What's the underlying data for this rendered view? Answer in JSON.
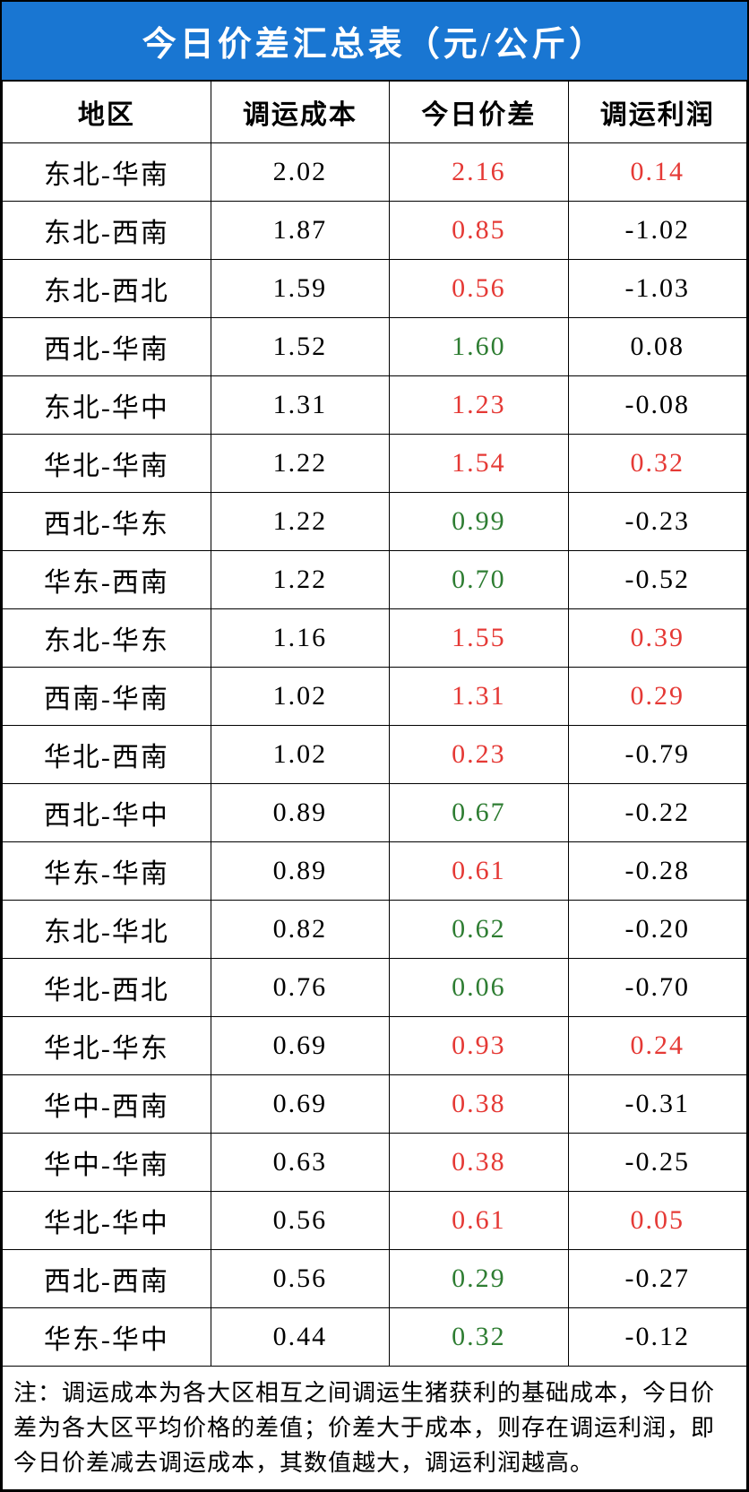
{
  "title": "今日价差汇总表（元/公斤）",
  "columns": [
    "地区",
    "调运成本",
    "今日价差",
    "调运利润"
  ],
  "colors": {
    "red": "#e53935",
    "green": "#2e7d32",
    "black": "#000000",
    "header_bg": "#1976d2",
    "header_fg": "#ffffff"
  },
  "rows": [
    {
      "region": "东北-华南",
      "cost": "2.02",
      "diff": "2.16",
      "diff_color": "red",
      "profit": "0.14",
      "profit_color": "red"
    },
    {
      "region": "东北-西南",
      "cost": "1.87",
      "diff": "0.85",
      "diff_color": "red",
      "profit": "-1.02",
      "profit_color": "black"
    },
    {
      "region": "东北-西北",
      "cost": "1.59",
      "diff": "0.56",
      "diff_color": "red",
      "profit": "-1.03",
      "profit_color": "black"
    },
    {
      "region": "西北-华南",
      "cost": "1.52",
      "diff": "1.60",
      "diff_color": "green",
      "profit": "0.08",
      "profit_color": "black"
    },
    {
      "region": "东北-华中",
      "cost": "1.31",
      "diff": "1.23",
      "diff_color": "red",
      "profit": "-0.08",
      "profit_color": "black"
    },
    {
      "region": "华北-华南",
      "cost": "1.22",
      "diff": "1.54",
      "diff_color": "red",
      "profit": "0.32",
      "profit_color": "red"
    },
    {
      "region": "西北-华东",
      "cost": "1.22",
      "diff": "0.99",
      "diff_color": "green",
      "profit": "-0.23",
      "profit_color": "black"
    },
    {
      "region": "华东-西南",
      "cost": "1.22",
      "diff": "0.70",
      "diff_color": "green",
      "profit": "-0.52",
      "profit_color": "black"
    },
    {
      "region": "东北-华东",
      "cost": "1.16",
      "diff": "1.55",
      "diff_color": "red",
      "profit": "0.39",
      "profit_color": "red"
    },
    {
      "region": "西南-华南",
      "cost": "1.02",
      "diff": "1.31",
      "diff_color": "red",
      "profit": "0.29",
      "profit_color": "red"
    },
    {
      "region": "华北-西南",
      "cost": "1.02",
      "diff": "0.23",
      "diff_color": "red",
      "profit": "-0.79",
      "profit_color": "black"
    },
    {
      "region": "西北-华中",
      "cost": "0.89",
      "diff": "0.67",
      "diff_color": "green",
      "profit": "-0.22",
      "profit_color": "black"
    },
    {
      "region": "华东-华南",
      "cost": "0.89",
      "diff": "0.61",
      "diff_color": "red",
      "profit": "-0.28",
      "profit_color": "black"
    },
    {
      "region": "东北-华北",
      "cost": "0.82",
      "diff": "0.62",
      "diff_color": "green",
      "profit": "-0.20",
      "profit_color": "black"
    },
    {
      "region": "华北-西北",
      "cost": "0.76",
      "diff": "0.06",
      "diff_color": "green",
      "profit": "-0.70",
      "profit_color": "black"
    },
    {
      "region": "华北-华东",
      "cost": "0.69",
      "diff": "0.93",
      "diff_color": "red",
      "profit": "0.24",
      "profit_color": "red"
    },
    {
      "region": "华中-西南",
      "cost": "0.69",
      "diff": "0.38",
      "diff_color": "red",
      "profit": "-0.31",
      "profit_color": "black"
    },
    {
      "region": "华中-华南",
      "cost": "0.63",
      "diff": "0.38",
      "diff_color": "red",
      "profit": "-0.25",
      "profit_color": "black"
    },
    {
      "region": "华北-华中",
      "cost": "0.56",
      "diff": "0.61",
      "diff_color": "red",
      "profit": "0.05",
      "profit_color": "red"
    },
    {
      "region": "西北-西南",
      "cost": "0.56",
      "diff": "0.29",
      "diff_color": "green",
      "profit": "-0.27",
      "profit_color": "black"
    },
    {
      "region": "华东-华中",
      "cost": "0.44",
      "diff": "0.32",
      "diff_color": "green",
      "profit": "-0.12",
      "profit_color": "black"
    }
  ],
  "note": "注：调运成本为各大区相互之间调运生猪获利的基础成本，今日价差为各大区平均价格的差值；价差大于成本，则存在调运利润，即今日价差减去调运成本，其数值越大，调运利润越高。"
}
